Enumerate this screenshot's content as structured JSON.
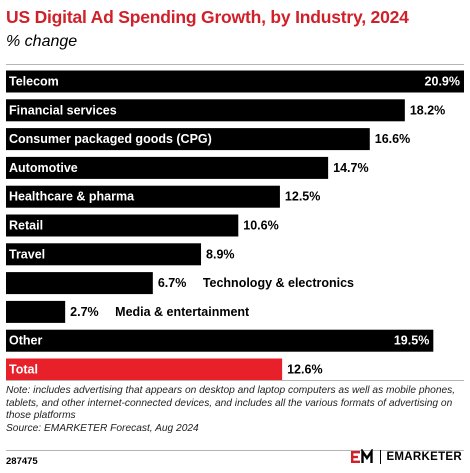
{
  "header": {
    "title": "US Digital Ad Spending Growth, by Industry, 2024",
    "subtitle": "% change"
  },
  "chart_data": {
    "type": "bar",
    "orientation": "horizontal",
    "unit": "%",
    "xlim": [
      0,
      20.9
    ],
    "categories": [
      "Telecom",
      "Financial services",
      "Consumer packaged goods (CPG)",
      "Automotive",
      "Healthcare & pharma",
      "Retail",
      "Travel",
      "Technology & electronics",
      "Media & entertainment",
      "Other",
      "Total"
    ],
    "values": [
      20.9,
      18.2,
      16.6,
      14.7,
      12.5,
      10.6,
      8.9,
      6.7,
      2.7,
      19.5,
      12.6
    ],
    "value_labels": [
      "20.9%",
      "18.2%",
      "16.6%",
      "14.7%",
      "12.5%",
      "10.6%",
      "8.9%",
      "6.7%",
      "2.7%",
      "19.5%",
      "12.6%"
    ],
    "colors": {
      "default": "#000000",
      "highlight": "#e8202a",
      "label_inside": "#ffffff",
      "label_outside": "#000000"
    },
    "highlight_category": "Total",
    "legend": "none",
    "grid": false
  },
  "footer": {
    "note": "Note: includes advertising that appears on desktop and laptop computers as well as mobile phones, tablets, and other internet-connected devices, and includes all the various formats of advertising on those platforms",
    "source": "Source: EMARKETER Forecast, Aug 2024",
    "chart_id": "287475",
    "brand": "EMARKETER",
    "logo_icon": "em-logo-icon"
  }
}
